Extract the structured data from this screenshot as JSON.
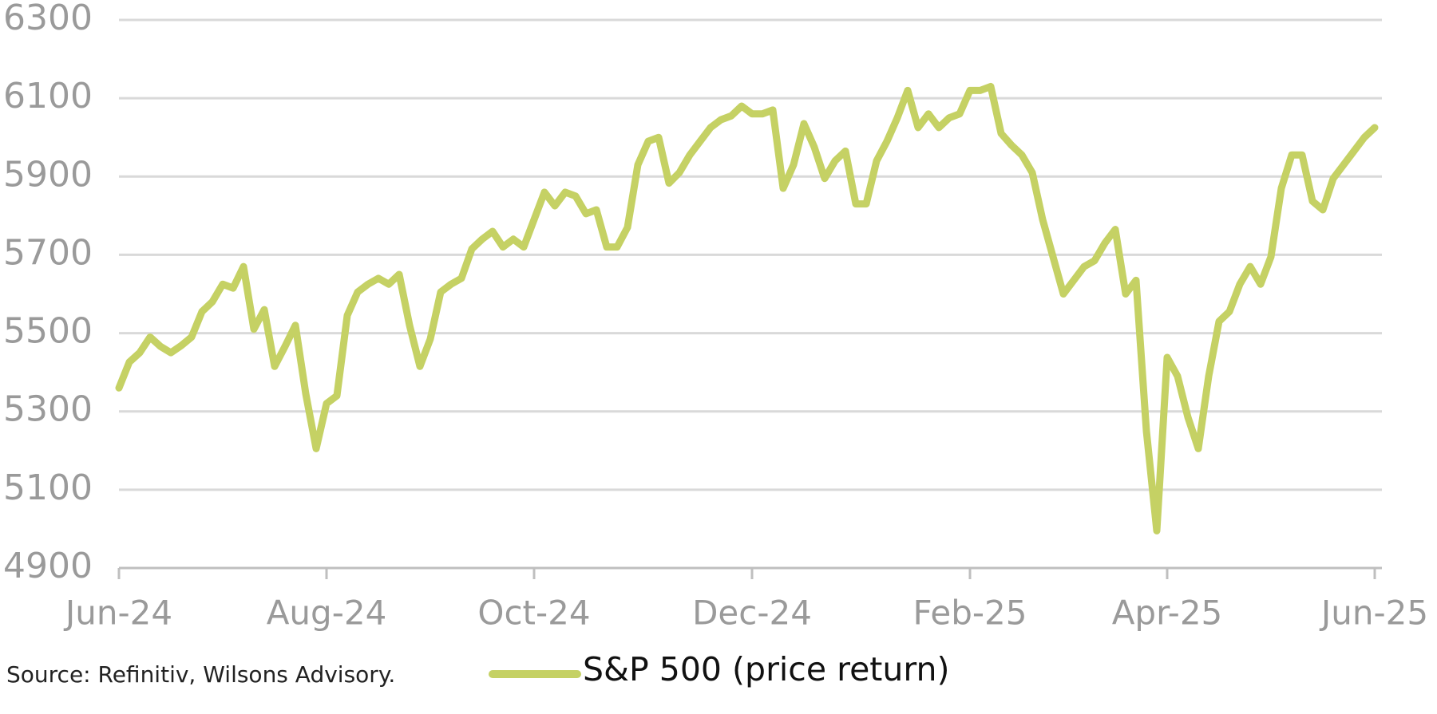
{
  "chart_data": {
    "type": "line",
    "source": "Source: Refinitiv, Wilsons Advisory.",
    "categories": [
      "Jun-24",
      null,
      null,
      null,
      null,
      null,
      null,
      null,
      null,
      null,
      null,
      null,
      null,
      null,
      null,
      null,
      null,
      null,
      null,
      null,
      "Aug-24",
      null,
      null,
      null,
      null,
      null,
      null,
      null,
      null,
      null,
      null,
      null,
      null,
      null,
      null,
      null,
      null,
      null,
      null,
      null,
      "Oct-24",
      null,
      null,
      null,
      null,
      null,
      null,
      null,
      null,
      null,
      null,
      null,
      null,
      null,
      null,
      null,
      null,
      null,
      null,
      null,
      null,
      "Dec-24",
      null,
      null,
      null,
      null,
      null,
      null,
      null,
      null,
      null,
      null,
      null,
      null,
      null,
      null,
      null,
      null,
      null,
      null,
      null,
      null,
      "Feb-25",
      null,
      null,
      null,
      null,
      null,
      null,
      null,
      null,
      null,
      null,
      null,
      null,
      null,
      null,
      null,
      null,
      null,
      null,
      "Apr-25",
      null,
      null,
      null,
      null,
      null,
      null,
      null,
      null,
      null,
      null,
      null,
      null,
      null,
      null,
      null,
      null,
      null,
      null,
      null,
      "Jun-25"
    ],
    "series": [
      {
        "name": "S&P 500 (price return)",
        "color": "#c5d164",
        "values": [
          5360,
          5426,
          5450,
          5490,
          5466,
          5450,
          5468,
          5490,
          5555,
          5580,
          5625,
          5615,
          5670,
          5510,
          5560,
          5415,
          5466,
          5520,
          5345,
          5205,
          5320,
          5340,
          5545,
          5605,
          5625,
          5640,
          5625,
          5650,
          5520,
          5415,
          5485,
          5605,
          5625,
          5640,
          5715,
          5740,
          5760,
          5720,
          5740,
          5720,
          5790,
          5860,
          5825,
          5860,
          5850,
          5805,
          5815,
          5720,
          5720,
          5770,
          5930,
          5990,
          6000,
          5883,
          5910,
          5955,
          5990,
          6025,
          6045,
          6055,
          6080,
          6060,
          6060,
          6070,
          5870,
          5930,
          6035,
          5975,
          5895,
          5940,
          5965,
          5830,
          5830,
          5940,
          5990,
          6050,
          6120,
          6025,
          6060,
          6025,
          6050,
          6060,
          6120,
          6120,
          6130,
          6010,
          5980,
          5955,
          5910,
          5790,
          5695,
          5600,
          5635,
          5670,
          5685,
          5730,
          5765,
          5600,
          5635,
          5250,
          4995,
          5438,
          5390,
          5285,
          5205,
          5390,
          5530,
          5555,
          5625,
          5670,
          5625,
          5695,
          5870,
          5955,
          5955,
          5837,
          5815,
          5895,
          5930,
          5965,
          6000,
          6025
        ]
      }
    ],
    "ylim": [
      4900,
      6300
    ],
    "yticks": [
      4900,
      5100,
      5300,
      5500,
      5700,
      5900,
      6100,
      6300
    ],
    "grid": true
  }
}
